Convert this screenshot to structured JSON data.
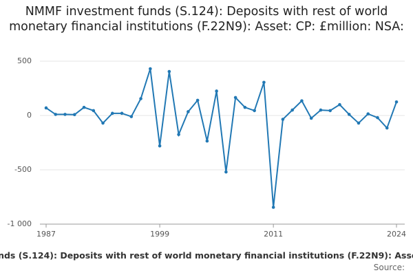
{
  "chart_data": {
    "type": "line",
    "title": "NMMF investment funds (S.124): Deposits with rest of world monetary financial institutions (F.22N9): Asset: CP: £million: NSA:",
    "source": "Source:",
    "x": [
      1987,
      1988,
      1989,
      1990,
      1991,
      1992,
      1993,
      1994,
      1995,
      1996,
      1997,
      1998,
      1999,
      2000,
      2001,
      2002,
      2003,
      2004,
      2005,
      2006,
      2007,
      2008,
      2009,
      2010,
      2011,
      2012,
      2013,
      2014,
      2015,
      2016,
      2017,
      2018,
      2019,
      2020,
      2021,
      2022,
      2023,
      2024
    ],
    "values": [
      70,
      10,
      10,
      8,
      75,
      45,
      -70,
      20,
      20,
      -10,
      155,
      430,
      -280,
      405,
      -175,
      35,
      140,
      -235,
      225,
      -520,
      165,
      75,
      45,
      305,
      -845,
      -35,
      50,
      135,
      -25,
      50,
      45,
      100,
      10,
      -70,
      15,
      -20,
      -115,
      125
    ],
    "color": "#2178b4",
    "xlim": [
      1987,
      2024
    ],
    "xticks": [
      1987,
      1999,
      2011,
      2024
    ],
    "ylim": [
      -1000,
      500
    ],
    "yticks": [
      {
        "value": -1000,
        "label": "-1 000"
      },
      -500,
      0,
      500
    ],
    "grid": true
  }
}
